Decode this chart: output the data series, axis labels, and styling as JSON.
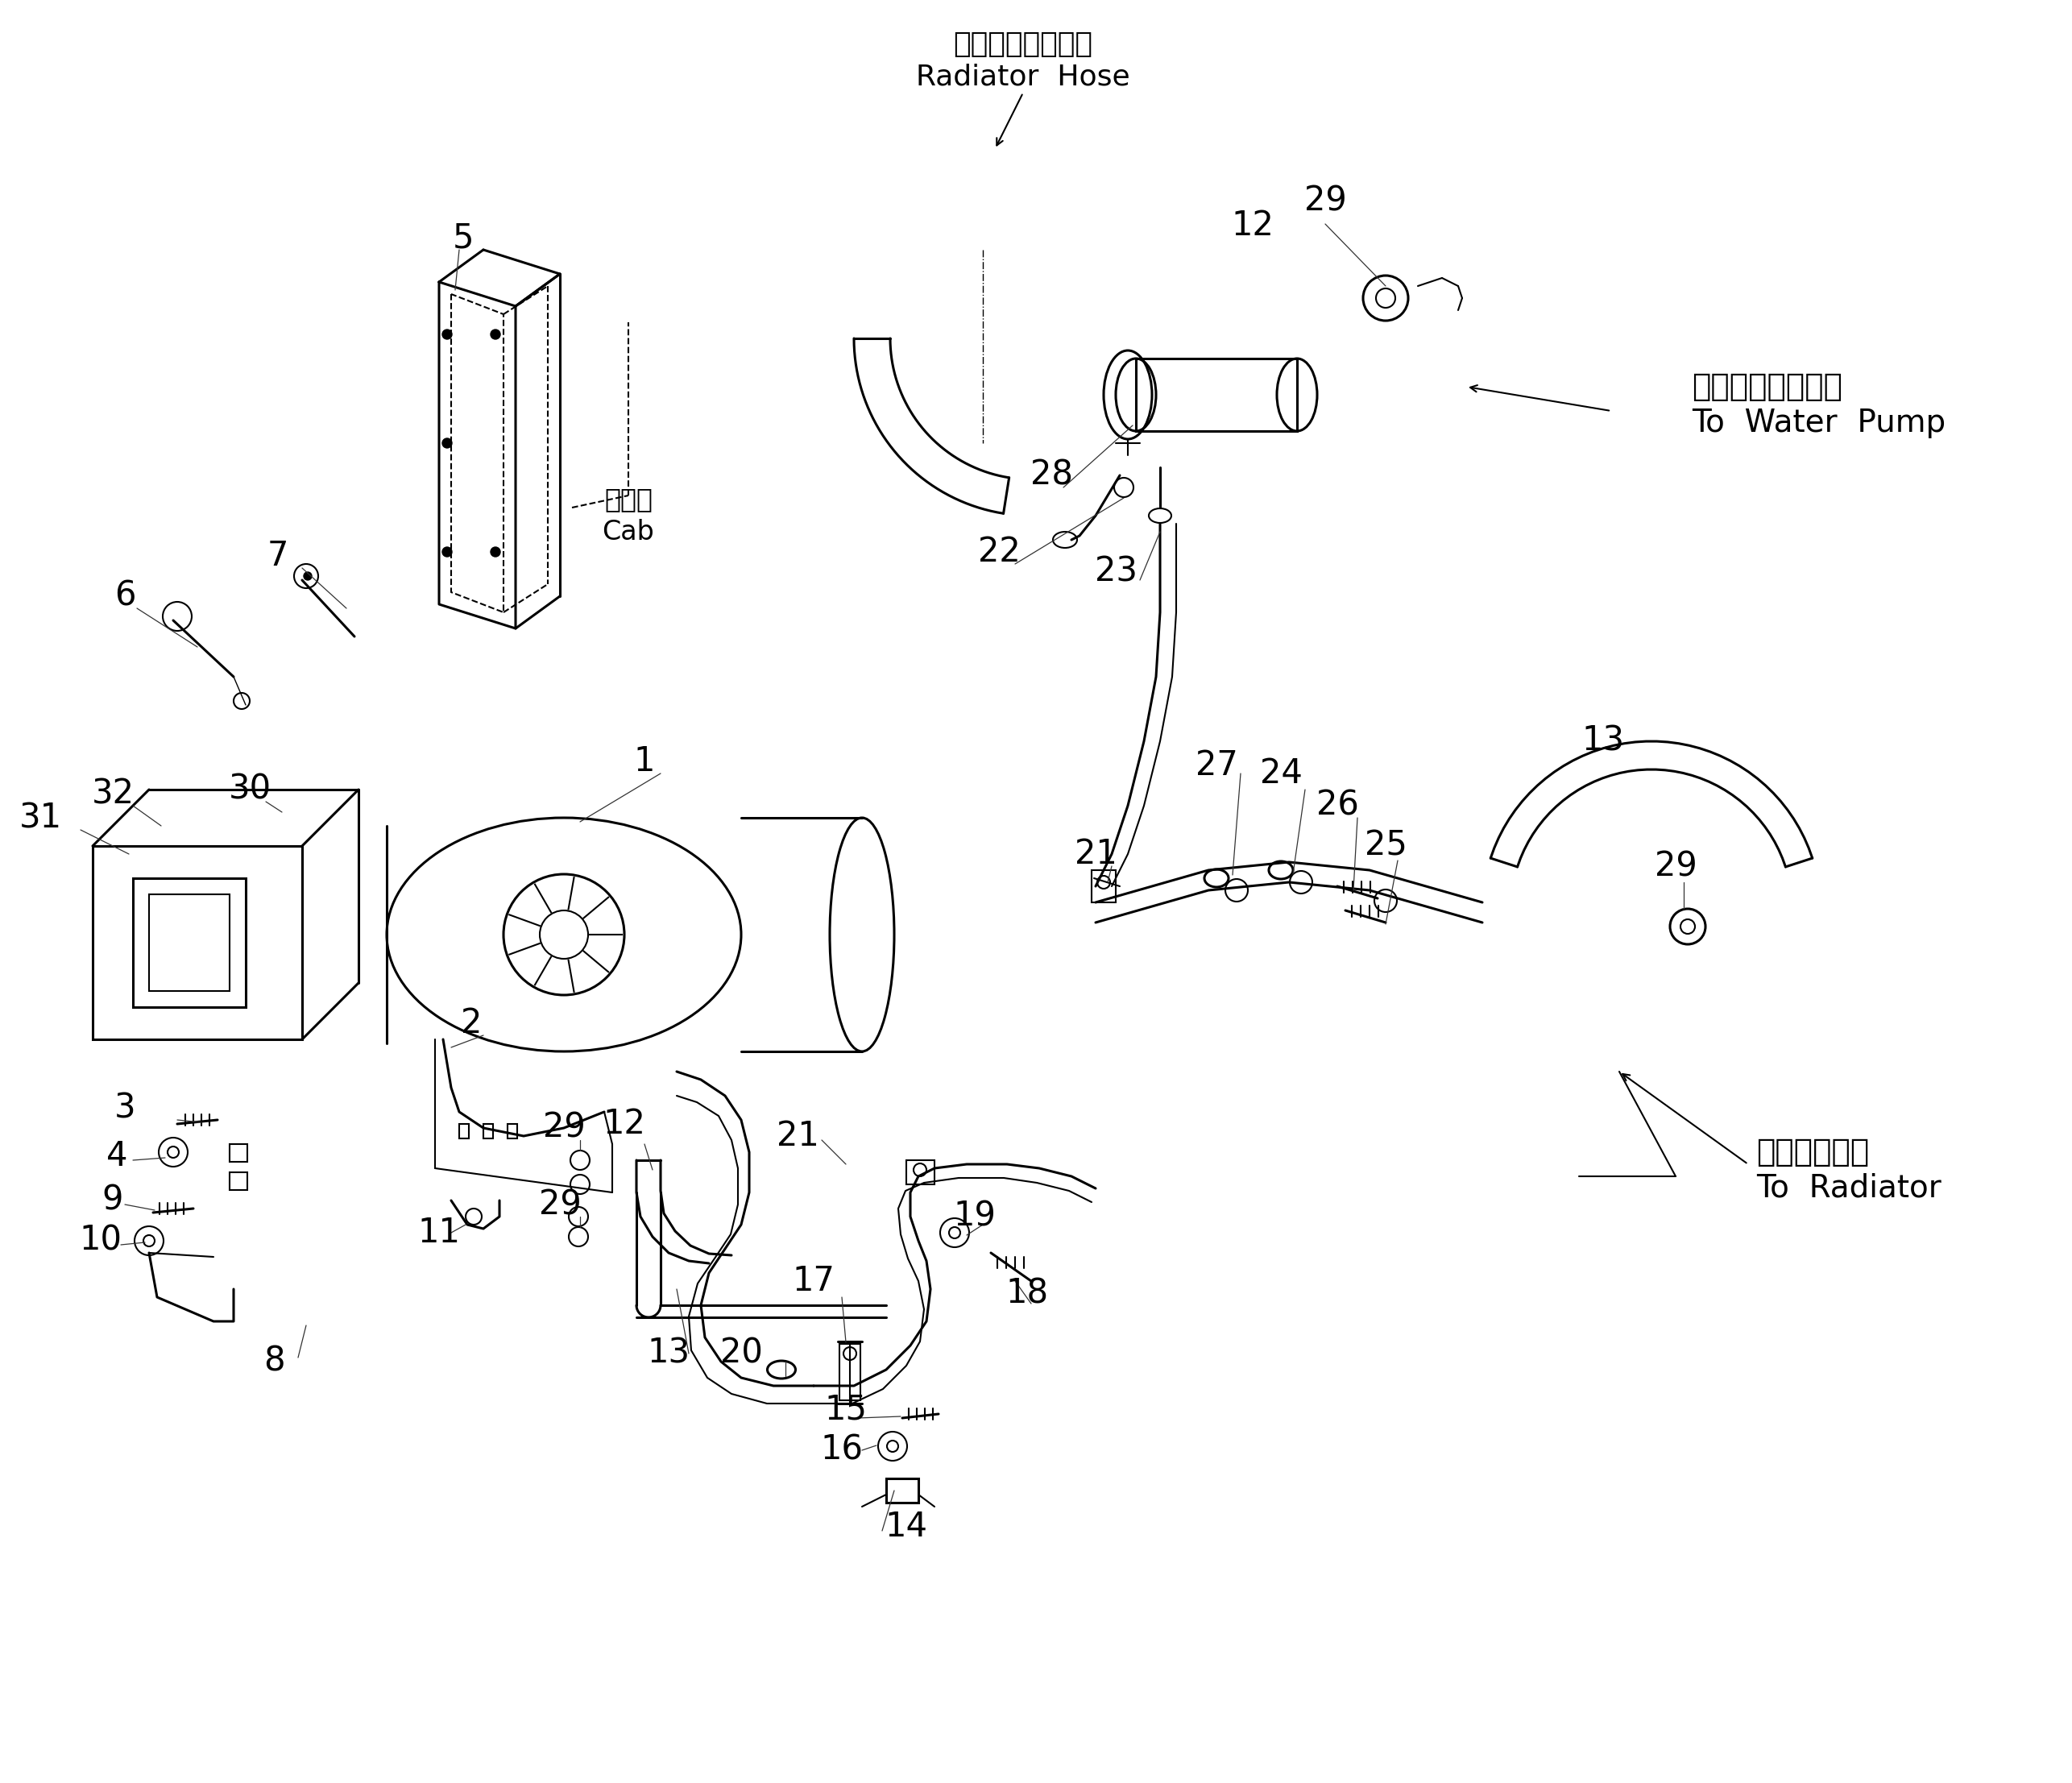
{
  "bg_color": "#ffffff",
  "lc": "#000000",
  "lw": 1.5,
  "blw": 2.2,
  "fig_width": 25.72,
  "fig_height": 22.13,
  "labels": {
    "radiator_hose_jp": "ラジエータホース",
    "radiator_hose_en": "Radiator  Hose",
    "water_pump_jp": "ウォータポンプへ",
    "water_pump_en": "To  Water  Pump",
    "radiator_jp": "ラジエータへ",
    "radiator_en": "To  Radiator",
    "cab_jp": "キャブ",
    "cab_en": "Cab"
  }
}
